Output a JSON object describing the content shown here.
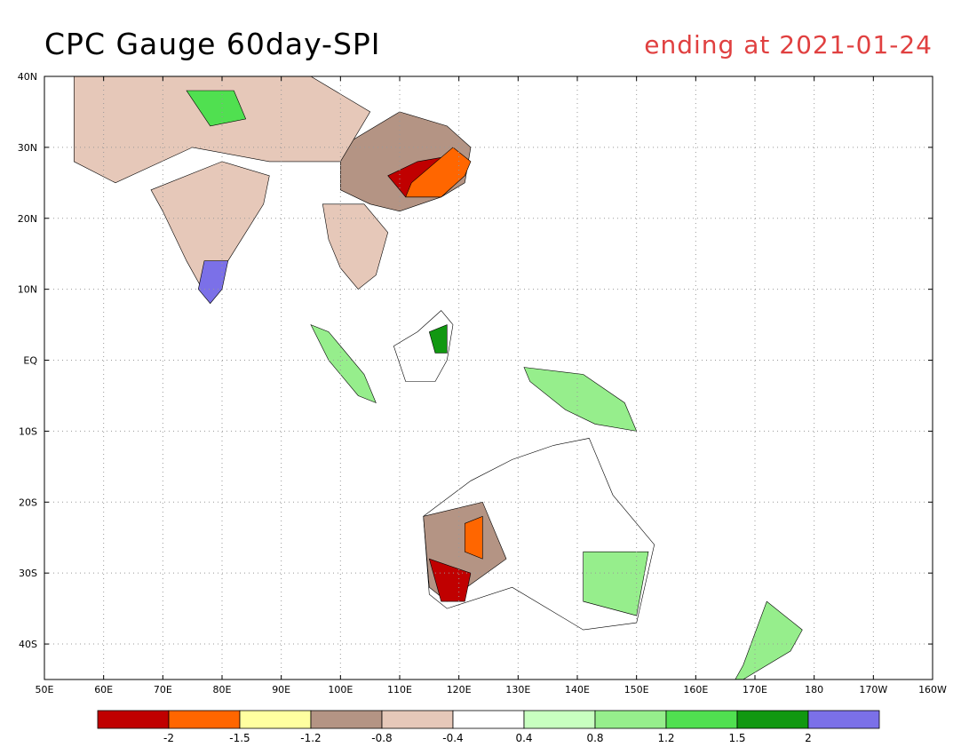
{
  "title": "CPC Gauge 60day-SPI",
  "subtitle": "ending at 2021-01-24",
  "map": {
    "lon_range": [
      50,
      200
    ],
    "lat_range": [
      -45,
      40
    ],
    "y_ticks": [
      {
        "lat": 40,
        "label": "40N"
      },
      {
        "lat": 30,
        "label": "30N"
      },
      {
        "lat": 20,
        "label": "20N"
      },
      {
        "lat": 10,
        "label": "10N"
      },
      {
        "lat": 0,
        "label": "EQ"
      },
      {
        "lat": -10,
        "label": "10S"
      },
      {
        "lat": -20,
        "label": "20S"
      },
      {
        "lat": -30,
        "label": "30S"
      },
      {
        "lat": -40,
        "label": "40S"
      }
    ],
    "x_ticks": [
      {
        "lon": 50,
        "label": "50E"
      },
      {
        "lon": 60,
        "label": "60E"
      },
      {
        "lon": 70,
        "label": "70E"
      },
      {
        "lon": 80,
        "label": "80E"
      },
      {
        "lon": 90,
        "label": "90E"
      },
      {
        "lon": 100,
        "label": "100E"
      },
      {
        "lon": 110,
        "label": "110E"
      },
      {
        "lon": 120,
        "label": "120E"
      },
      {
        "lon": 130,
        "label": "130E"
      },
      {
        "lon": 140,
        "label": "140E"
      },
      {
        "lon": 150,
        "label": "150E"
      },
      {
        "lon": 160,
        "label": "160E"
      },
      {
        "lon": 170,
        "label": "170E"
      },
      {
        "lon": 180,
        "label": "180"
      },
      {
        "lon": 190,
        "label": "170W"
      },
      {
        "lon": 200,
        "label": "160W"
      }
    ]
  },
  "colorbar": {
    "colors": [
      "#c00000",
      "#ff6600",
      "#ffffa0",
      "#b49484",
      "#e6c8b9",
      "#ffffff",
      "#c8ffc0",
      "#96ee8c",
      "#50e050",
      "#119811",
      "#7b70e8"
    ],
    "labels": [
      "-2",
      "-1.5",
      "-1.2",
      "-0.8",
      "-0.4",
      "0.4",
      "0.8",
      "1.2",
      "1.5",
      "2"
    ]
  },
  "regions": [
    {
      "name": "china-east",
      "color": "#b49484",
      "pts": [
        [
          100,
          30
        ],
        [
          110,
          35
        ],
        [
          118,
          33
        ],
        [
          122,
          30
        ],
        [
          121,
          25
        ],
        [
          117,
          23
        ],
        [
          110,
          21
        ],
        [
          105,
          22
        ],
        [
          100,
          24
        ]
      ]
    },
    {
      "name": "china-south-dry",
      "color": "#c00000",
      "pts": [
        [
          108,
          26
        ],
        [
          113,
          28
        ],
        [
          120,
          29
        ],
        [
          121,
          26
        ],
        [
          117,
          23
        ],
        [
          111,
          23
        ]
      ]
    },
    {
      "name": "china-south-orange",
      "color": "#ff6600",
      "pts": [
        [
          111,
          23
        ],
        [
          117,
          23
        ],
        [
          121,
          26
        ],
        [
          122,
          28
        ],
        [
          119,
          30
        ],
        [
          112,
          25
        ]
      ]
    },
    {
      "name": "indochina",
      "color": "#e6c8b9",
      "pts": [
        [
          97,
          22
        ],
        [
          104,
          22
        ],
        [
          108,
          18
        ],
        [
          106,
          12
        ],
        [
          103,
          10
        ],
        [
          100,
          13
        ],
        [
          98,
          17
        ]
      ]
    },
    {
      "name": "india",
      "color": "#e6c8b9",
      "pts": [
        [
          68,
          24
        ],
        [
          80,
          28
        ],
        [
          88,
          26
        ],
        [
          87,
          22
        ],
        [
          81,
          14
        ],
        [
          78,
          8
        ],
        [
          74,
          14
        ],
        [
          70,
          21
        ]
      ]
    },
    {
      "name": "india-south-wet",
      "color": "#7b70e8",
      "pts": [
        [
          77,
          14
        ],
        [
          81,
          14
        ],
        [
          80,
          10
        ],
        [
          78,
          8
        ],
        [
          76,
          10
        ]
      ]
    },
    {
      "name": "central-asia",
      "color": "#e6c8b9",
      "pts": [
        [
          55,
          40
        ],
        [
          75,
          40
        ],
        [
          95,
          40
        ],
        [
          105,
          35
        ],
        [
          100,
          28
        ],
        [
          88,
          28
        ],
        [
          75,
          30
        ],
        [
          62,
          25
        ],
        [
          55,
          28
        ]
      ]
    },
    {
      "name": "tibet-wet",
      "color": "#50e050",
      "pts": [
        [
          74,
          38
        ],
        [
          82,
          38
        ],
        [
          84,
          34
        ],
        [
          78,
          33
        ]
      ]
    },
    {
      "name": "borneo",
      "color": "#ffffff",
      "pts": [
        [
          109,
          2
        ],
        [
          113,
          4
        ],
        [
          117,
          7
        ],
        [
          119,
          5
        ],
        [
          118,
          0
        ],
        [
          116,
          -3
        ],
        [
          111,
          -3
        ]
      ]
    },
    {
      "name": "borneo-wet",
      "color": "#119811",
      "pts": [
        [
          115,
          4
        ],
        [
          118,
          5
        ],
        [
          118,
          1
        ],
        [
          116,
          1
        ]
      ]
    },
    {
      "name": "sumatra",
      "color": "#96ee8c",
      "pts": [
        [
          95,
          5
        ],
        [
          98,
          4
        ],
        [
          104,
          -2
        ],
        [
          106,
          -6
        ],
        [
          103,
          -5
        ],
        [
          98,
          0
        ]
      ]
    },
    {
      "name": "new-guinea",
      "color": "#96ee8c",
      "pts": [
        [
          131,
          -1
        ],
        [
          141,
          -2
        ],
        [
          148,
          -6
        ],
        [
          150,
          -10
        ],
        [
          143,
          -9
        ],
        [
          138,
          -7
        ],
        [
          132,
          -3
        ]
      ]
    },
    {
      "name": "australia",
      "color": "#ffffff",
      "pts": [
        [
          114,
          -22
        ],
        [
          122,
          -17
        ],
        [
          129,
          -14
        ],
        [
          136,
          -12
        ],
        [
          142,
          -11
        ],
        [
          146,
          -19
        ],
        [
          153,
          -26
        ],
        [
          150,
          -37
        ],
        [
          141,
          -38
        ],
        [
          135,
          -35
        ],
        [
          129,
          -32
        ],
        [
          118,
          -35
        ],
        [
          115,
          -33
        ]
      ]
    },
    {
      "name": "australia-west-dry",
      "color": "#b49484",
      "pts": [
        [
          114,
          -22
        ],
        [
          124,
          -20
        ],
        [
          128,
          -28
        ],
        [
          118,
          -34
        ],
        [
          115,
          -32
        ]
      ]
    },
    {
      "name": "australia-sw-red",
      "color": "#c00000",
      "pts": [
        [
          115,
          -28
        ],
        [
          122,
          -30
        ],
        [
          121,
          -34
        ],
        [
          117,
          -34
        ]
      ]
    },
    {
      "name": "australia-central-orange",
      "color": "#ff6600",
      "pts": [
        [
          121,
          -23
        ],
        [
          124,
          -22
        ],
        [
          124,
          -28
        ],
        [
          121,
          -27
        ]
      ]
    },
    {
      "name": "australia-east-green",
      "color": "#96ee8c",
      "pts": [
        [
          141,
          -27
        ],
        [
          152,
          -27
        ],
        [
          150,
          -36
        ],
        [
          141,
          -34
        ]
      ]
    },
    {
      "name": "new-zealand",
      "color": "#96ee8c",
      "pts": [
        [
          172,
          -34
        ],
        [
          178,
          -38
        ],
        [
          176,
          -41
        ],
        [
          166,
          -46
        ],
        [
          168,
          -43
        ]
      ]
    }
  ]
}
